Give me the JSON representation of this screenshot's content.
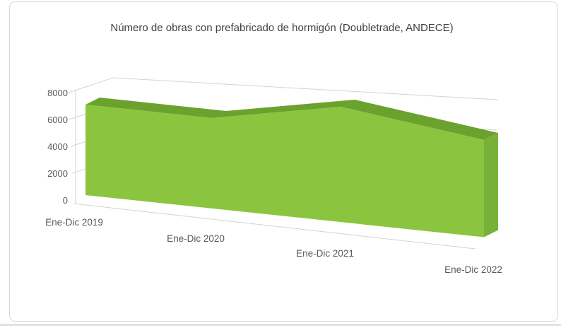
{
  "page": {
    "background": "#ffffff"
  },
  "chart_data": {
    "type": "area",
    "style": "3d-area-single-series",
    "title": "Número de obras con prefabricado de hormigón (Doubletrade, ANDECE)",
    "categories": [
      "Ene-Dic 2019",
      "Ene-Dic 2020",
      "Ene-Dic 2021",
      "Ene-Dic 2022"
    ],
    "values": [
      7000,
      6200,
      7400,
      4700
    ],
    "ylim": [
      0,
      8000
    ],
    "y_ticks": [
      0,
      2000,
      4000,
      6000,
      8000
    ],
    "y_tick_labels_top_to_bottom": [
      "8000",
      "6000",
      "4000",
      "2000",
      "0"
    ],
    "grid": true,
    "legend": "none",
    "colors": {
      "area_front": "#8bc53f",
      "area_top": "#6ba22e",
      "area_side": "#78b138",
      "gridline": "#d3d3d3",
      "axis_text": "#595959",
      "title_text": "#404040",
      "chart_border": "#d9d9d9",
      "bottom_rule": "#dfe2e6"
    }
  }
}
